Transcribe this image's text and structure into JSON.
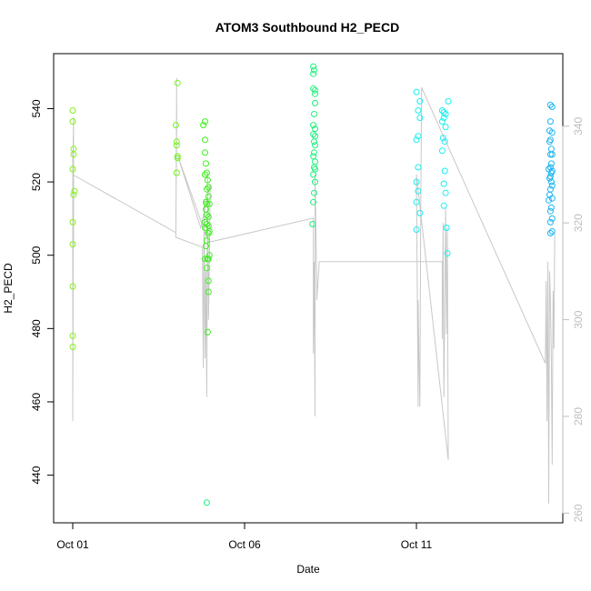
{
  "chart_data": {
    "type": "scatter",
    "title": "ATOM3 Southbound H2_PECD",
    "xlabel": "Date",
    "ylabel": "H2_PECD",
    "y2label": "",
    "ylim": [
      427,
      555
    ],
    "y2lim": [
      258,
      355
    ],
    "xlim": [
      0,
      29
    ],
    "grid": false,
    "x_ticks": [
      {
        "value": 0,
        "label": "Oct 01"
      },
      {
        "value": 10,
        "label": "Oct 06"
      },
      {
        "value": 20,
        "label": "Oct 11"
      }
    ],
    "y_ticks": [
      440,
      460,
      480,
      500,
      520,
      540
    ],
    "y2_ticks": [
      260,
      280,
      300,
      320,
      340
    ],
    "colors": {
      "axes": "#000000",
      "secondary": "#bebebe",
      "line": "#c8c8c8"
    },
    "series": [
      {
        "type": "points",
        "points": [
          [
            0,
            539.5
          ],
          [
            0,
            536.5
          ],
          [
            0.05,
            529
          ],
          [
            0.05,
            527.5
          ],
          [
            0,
            523.5
          ],
          [
            0.1,
            517.5
          ],
          [
            0.05,
            516.5
          ],
          [
            0,
            509
          ],
          [
            0,
            503
          ],
          [
            0,
            491.5
          ],
          [
            0,
            478
          ],
          [
            0,
            475
          ],
          [
            6.1,
            547
          ],
          [
            6,
            535.5
          ],
          [
            6.05,
            531
          ],
          [
            6.05,
            530
          ],
          [
            6.1,
            527
          ],
          [
            6.1,
            526.5
          ],
          [
            6.05,
            522.5
          ],
          [
            7.7,
            536.5
          ],
          [
            7.6,
            535.5
          ],
          [
            7.7,
            531.5
          ],
          [
            7.7,
            528
          ],
          [
            7.75,
            525
          ],
          [
            7.8,
            522.5
          ],
          [
            7.7,
            522
          ],
          [
            7.85,
            520.5
          ],
          [
            7.9,
            518.5
          ],
          [
            7.8,
            518
          ],
          [
            7.9,
            516
          ],
          [
            7.75,
            514.5
          ],
          [
            7.8,
            514
          ],
          [
            7.95,
            514
          ],
          [
            7.75,
            512.5
          ],
          [
            7.8,
            511
          ],
          [
            7.9,
            510.5
          ],
          [
            7.7,
            509
          ],
          [
            7.8,
            508.5
          ],
          [
            7.9,
            508
          ],
          [
            7.7,
            507.5
          ],
          [
            7.95,
            506.5
          ],
          [
            7.9,
            506
          ],
          [
            7.8,
            504
          ],
          [
            7.75,
            502.5
          ],
          [
            7.95,
            500
          ],
          [
            7.7,
            499
          ],
          [
            7.85,
            499
          ],
          [
            7.9,
            499
          ],
          [
            7.8,
            496.5
          ],
          [
            7.9,
            493
          ],
          [
            7.9,
            490
          ],
          [
            7.85,
            479
          ],
          [
            7.8,
            432.5
          ],
          [
            14,
            551.5
          ],
          [
            14.05,
            550.5
          ],
          [
            14,
            549.5
          ],
          [
            14,
            545.5
          ],
          [
            14.1,
            545
          ],
          [
            14.1,
            544
          ],
          [
            14.1,
            541.5
          ],
          [
            14.05,
            538.5
          ],
          [
            14,
            535.5
          ],
          [
            14.1,
            534.5
          ],
          [
            14,
            533
          ],
          [
            14.1,
            532.5
          ],
          [
            14.05,
            531
          ],
          [
            14.1,
            530
          ],
          [
            14.05,
            528
          ],
          [
            14,
            527
          ],
          [
            14.1,
            525.5
          ],
          [
            14.05,
            524
          ],
          [
            14.1,
            523.5
          ],
          [
            14,
            522
          ],
          [
            14.1,
            520
          ],
          [
            14.05,
            517
          ],
          [
            14,
            514.5
          ],
          [
            13.95,
            508.5
          ]
        ],
        "colors": [
          "#85f21a",
          "#74f21a",
          "#3af21a",
          "#1af27a"
        ],
        "color_breaks": [
          12,
          19,
          52,
          80
        ]
      },
      {
        "type": "points",
        "points": [
          [
            20,
            544.5
          ],
          [
            20.2,
            542
          ],
          [
            20.1,
            539.5
          ],
          [
            20.2,
            537.5
          ],
          [
            20.1,
            532.5
          ],
          [
            20,
            531.5
          ],
          [
            20.1,
            524
          ],
          [
            20,
            520
          ],
          [
            20.1,
            517.5
          ],
          [
            20,
            514.5
          ],
          [
            20.2,
            511.5
          ],
          [
            20,
            507
          ],
          [
            21.5,
            539.5
          ],
          [
            21.6,
            539
          ],
          [
            21.7,
            538.5
          ],
          [
            21.6,
            537.5
          ],
          [
            21.5,
            536.5
          ],
          [
            21.7,
            535
          ],
          [
            21.55,
            532
          ],
          [
            21.65,
            531
          ],
          [
            21.5,
            528.5
          ],
          [
            21.65,
            523
          ],
          [
            21.6,
            519.5
          ],
          [
            21.7,
            517
          ],
          [
            21.6,
            513.5
          ],
          [
            21.75,
            507.5
          ],
          [
            21.8,
            500.5
          ],
          [
            21.85,
            542
          ]
        ],
        "colors": [
          "#1aeef2"
        ]
      },
      {
        "type": "points",
        "points": [
          [
            27.8,
            541
          ],
          [
            27.9,
            540.5
          ],
          [
            27.8,
            536.5
          ],
          [
            27.75,
            534
          ],
          [
            27.9,
            533.5
          ],
          [
            27.8,
            531.5
          ],
          [
            27.75,
            531
          ],
          [
            27.85,
            529
          ],
          [
            27.8,
            527.5
          ],
          [
            27.9,
            527.5
          ],
          [
            27.85,
            525
          ],
          [
            27.8,
            524
          ],
          [
            27.7,
            523.5
          ],
          [
            27.9,
            523
          ],
          [
            27.85,
            522.5
          ],
          [
            27.8,
            521.5
          ],
          [
            27.75,
            521
          ],
          [
            27.85,
            520
          ],
          [
            27.9,
            519
          ],
          [
            27.8,
            518
          ],
          [
            27.75,
            516.5
          ],
          [
            27.9,
            515.5
          ],
          [
            27.7,
            515
          ],
          [
            27.85,
            513
          ],
          [
            27.8,
            512
          ],
          [
            27.9,
            510
          ],
          [
            27.8,
            509
          ],
          [
            27.9,
            506.5
          ],
          [
            27.8,
            506
          ]
        ],
        "colors": [
          "#1ab4f2"
        ]
      },
      {
        "type": "line",
        "axis": "y2",
        "points": [
          [
            0,
            335
          ],
          [
            0,
            279
          ],
          [
            0.05,
            331
          ],
          [
            0.05,
            315
          ],
          [
            0.05,
            342
          ],
          [
            0,
            330
          ],
          [
            6,
            318
          ],
          [
            6.05,
            340
          ],
          [
            6.05,
            350
          ],
          [
            6,
            317
          ],
          [
            7.55,
            315
          ],
          [
            7.55,
            312
          ],
          [
            7.6,
            290
          ],
          [
            7.65,
            325
          ],
          [
            7.7,
            292
          ],
          [
            7.75,
            310
          ],
          [
            7.8,
            284
          ],
          [
            7.85,
            330
          ],
          [
            7.9,
            300
          ],
          [
            7.95,
            312
          ],
          [
            8,
            328
          ],
          [
            7.45,
            319
          ],
          [
            6.1,
            334
          ],
          [
            7.9,
            316
          ],
          [
            14,
            321
          ],
          [
            14,
            304
          ],
          [
            14,
            293
          ],
          [
            14.05,
            312
          ],
          [
            14.1,
            280
          ],
          [
            14.1,
            330
          ],
          [
            14.2,
            308
          ],
          [
            14.2,
            304
          ],
          [
            14.35,
            312
          ],
          [
            21.5,
            312
          ],
          [
            21.5,
            296
          ],
          [
            21.55,
            320
          ],
          [
            21.6,
            284
          ],
          [
            21.7,
            323
          ],
          [
            21.75,
            297
          ],
          [
            21.8,
            319
          ],
          [
            21.85,
            271
          ],
          [
            20,
            330
          ],
          [
            20.1,
            282
          ],
          [
            20.1,
            304
          ],
          [
            20.15,
            292
          ],
          [
            20.2,
            282
          ],
          [
            20.25,
            320
          ],
          [
            20.3,
            348
          ],
          [
            27.5,
            291
          ],
          [
            27.55,
            308
          ],
          [
            27.6,
            279
          ],
          [
            27.65,
            312
          ],
          [
            27.7,
            262
          ],
          [
            27.75,
            310
          ],
          [
            27.8,
            304
          ],
          [
            27.85,
            292
          ],
          [
            27.9,
            270
          ],
          [
            27.95,
            306
          ],
          [
            28,
            294
          ],
          [
            28.05,
            318
          ]
        ],
        "color": "#c8c8c8"
      }
    ]
  }
}
